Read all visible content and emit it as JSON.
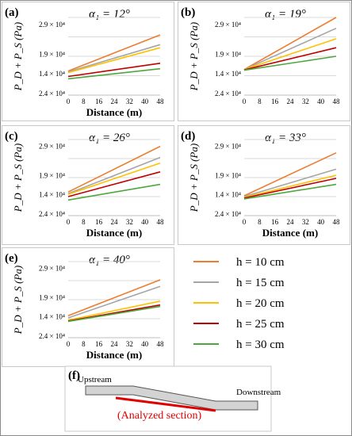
{
  "chart_data": [
    {
      "type": "line",
      "panel": "(a)",
      "title": "α₁ = 12°",
      "xlabel": "Distance (m)",
      "ylabel": "P_D + P_S (Pa)",
      "ytick_labels": [
        "2.4 × 10⁴",
        "1.4 × 10⁴",
        "1.9 × 10⁴",
        "2.9 × 10⁴"
      ],
      "ylim": [
        0.9,
        2.9
      ],
      "xticks": [
        0,
        8,
        16,
        24,
        32,
        40,
        48
      ],
      "xlim": [
        0,
        48
      ],
      "grid": true,
      "x": [
        0,
        48
      ],
      "series": [
        {
          "name": "h = 10 cm",
          "values": [
            1.52,
            2.45
          ]
        },
        {
          "name": "h = 15 cm",
          "values": [
            1.5,
            2.2
          ]
        },
        {
          "name": "h = 20 cm",
          "values": [
            1.48,
            2.12
          ]
        },
        {
          "name": "h = 25 cm",
          "values": [
            1.38,
            1.72
          ]
        },
        {
          "name": "h = 30 cm",
          "values": [
            1.32,
            1.58
          ]
        }
      ]
    },
    {
      "type": "line",
      "panel": "(b)",
      "title": "α₁ = 19°",
      "xlabel": "",
      "ylabel": "P_D + P_S (Pa)",
      "ytick_labels": [
        "2.4 × 10⁴",
        "1.4 × 10⁴",
        "1.9 × 10⁴",
        "2.9 × 10⁴"
      ],
      "ylim": [
        0.9,
        2.9
      ],
      "xticks": [
        0,
        8,
        16,
        24,
        32,
        40,
        48
      ],
      "xlim": [
        0,
        48
      ],
      "grid": true,
      "x": [
        0,
        48
      ],
      "series": [
        {
          "name": "h = 10 cm",
          "values": [
            1.56,
            2.9
          ]
        },
        {
          "name": "h = 15 cm",
          "values": [
            1.56,
            2.62
          ]
        },
        {
          "name": "h = 20 cm",
          "values": [
            1.56,
            2.35
          ]
        },
        {
          "name": "h = 25 cm",
          "values": [
            1.55,
            2.12
          ]
        },
        {
          "name": "h = 30 cm",
          "values": [
            1.54,
            1.9
          ]
        }
      ]
    },
    {
      "type": "line",
      "panel": "(c)",
      "title": "α₁ = 26°",
      "xlabel": "Distance (m)",
      "ylabel": "P_D + P_S (Pa)",
      "ytick_labels": [
        "2.4 × 10⁴",
        "1.4 × 10⁴",
        "1.9 × 10⁴",
        "2.9 × 10⁴"
      ],
      "ylim": [
        0.9,
        2.9
      ],
      "xticks": [
        0,
        8,
        16,
        24,
        32,
        40,
        48
      ],
      "xlim": [
        0,
        48
      ],
      "grid": true,
      "x": [
        0,
        48
      ],
      "series": [
        {
          "name": "h = 10 cm",
          "values": [
            1.52,
            2.72
          ]
        },
        {
          "name": "h = 15 cm",
          "values": [
            1.48,
            2.43
          ]
        },
        {
          "name": "h = 20 cm",
          "values": [
            1.46,
            2.28
          ]
        },
        {
          "name": "h = 25 cm",
          "values": [
            1.4,
            2.05
          ]
        },
        {
          "name": "h = 30 cm",
          "values": [
            1.31,
            1.72
          ]
        }
      ]
    },
    {
      "type": "line",
      "panel": "(d)",
      "title": "α₁ = 33°",
      "xlabel": "Distance (m)",
      "ylabel": "P_D + P_S (Pa)",
      "ytick_labels": [
        "2.4 × 10⁴",
        "1.4 × 10⁴",
        "1.9 × 10⁴",
        "2.9 × 10⁴"
      ],
      "ylim": [
        0.9,
        2.9
      ],
      "xticks": [
        0,
        8,
        16,
        24,
        32,
        40,
        48
      ],
      "xlim": [
        0,
        48
      ],
      "grid": true,
      "x": [
        0,
        48
      ],
      "series": [
        {
          "name": "h = 10 cm",
          "values": [
            1.42,
            2.55
          ]
        },
        {
          "name": "h = 15 cm",
          "values": [
            1.4,
            2.12
          ]
        },
        {
          "name": "h = 20 cm",
          "values": [
            1.38,
            1.96
          ]
        },
        {
          "name": "h = 25 cm",
          "values": [
            1.36,
            1.88
          ]
        },
        {
          "name": "h = 30 cm",
          "values": [
            1.34,
            1.72
          ]
        }
      ]
    },
    {
      "type": "line",
      "panel": "(e)",
      "title": "α₁ = 40°",
      "xlabel": "Distance (m)",
      "ylabel": "P_D + P_S (Pa)",
      "ytick_labels": [
        "2.4 × 10⁴",
        "1.4 × 10⁴",
        "1.9 × 10⁴",
        "2.9 × 10⁴"
      ],
      "ylim": [
        0.9,
        2.9
      ],
      "xticks": [
        0,
        8,
        16,
        24,
        32,
        40,
        48
      ],
      "xlim": [
        0,
        48
      ],
      "grid": true,
      "x": [
        0,
        48
      ],
      "series": [
        {
          "name": "h = 10 cm",
          "values": [
            1.48,
            2.42
          ]
        },
        {
          "name": "h = 15 cm",
          "values": [
            1.42,
            2.25
          ]
        },
        {
          "name": "h = 20 cm",
          "values": [
            1.36,
            1.86
          ]
        },
        {
          "name": "h = 25 cm",
          "values": [
            1.34,
            1.76
          ]
        },
        {
          "name": "h = 30 cm",
          "values": [
            1.33,
            1.72
          ]
        }
      ]
    }
  ],
  "legend": {
    "placement": "right-middle",
    "items": [
      {
        "label": "h = 10 cm",
        "color": "#ED7D31"
      },
      {
        "label": "h = 15 cm",
        "color": "#A5A5A5"
      },
      {
        "label": "h = 20 cm",
        "color": "#FFC000"
      },
      {
        "label": "h = 25 cm",
        "color": "#C00000"
      },
      {
        "label": "h = 30 cm",
        "color": "#4CA83C"
      }
    ]
  },
  "diagram": {
    "panel": "(f)",
    "upstream_label": "Upstream",
    "downstream_label": "Downstream",
    "section_label": "(Analyzed section)",
    "section_color": "#E00000",
    "channel_color": "#D3D3D3"
  },
  "colors": {
    "grid": "#D9D9D9",
    "panel_border": "#C9C9C9"
  }
}
